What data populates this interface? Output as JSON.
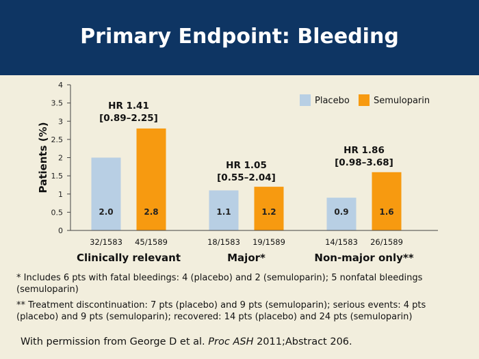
{
  "title": "Primary Endpoint: Bleeding",
  "colors": {
    "placebo": "#b8cfe4",
    "semuloparin": "#f79a10",
    "header": "#0e3563"
  },
  "chart_data": {
    "type": "bar",
    "ylabel": "Patients (%)",
    "ylim": [
      0,
      4
    ],
    "yticks": [
      "0",
      "0.5",
      "1",
      "1.5",
      "2",
      "2.5",
      "3",
      "3.5",
      "4"
    ],
    "legend_position": "top-right",
    "series": [
      {
        "name": "Placebo",
        "values": [
          2.0,
          1.1,
          0.9
        ],
        "labels": [
          "2.0",
          "1.1",
          "0.9"
        ],
        "counts": [
          "32/1583",
          "18/1583",
          "14/1583"
        ]
      },
      {
        "name": "Semuloparin",
        "values": [
          2.8,
          1.2,
          1.6
        ],
        "labels": [
          "2.8",
          "1.2",
          "1.6"
        ],
        "counts": [
          "45/1589",
          "19/1589",
          "26/1589"
        ]
      }
    ],
    "categories": [
      "Clinically relevant",
      "Major*",
      "Non-major only**"
    ],
    "annotations": [
      {
        "hr": "HR 1.41",
        "ci": "[0.89–2.25]"
      },
      {
        "hr": "HR 1.05",
        "ci": "[0.55–2.04]"
      },
      {
        "hr": "HR 1.86",
        "ci": "[0.98–3.68]"
      }
    ]
  },
  "footnotes": {
    "note1": "* Includes 6 pts with fatal bleedings: 4 (placebo) and 2 (semuloparin); 5 nonfatal bleedings (semuloparin)",
    "note2": "** Treatment discontinuation: 7 pts (placebo) and 9 pts (semuloparin); serious events: 4 pts (placebo) and 9 pts (semuloparin); recovered: 14 pts (placebo) and 24 pts (semuloparin)"
  },
  "credit": {
    "prefix": "With permission from George D et al. ",
    "journal": "Proc ASH",
    "suffix": " 2011;Abstract 206."
  }
}
